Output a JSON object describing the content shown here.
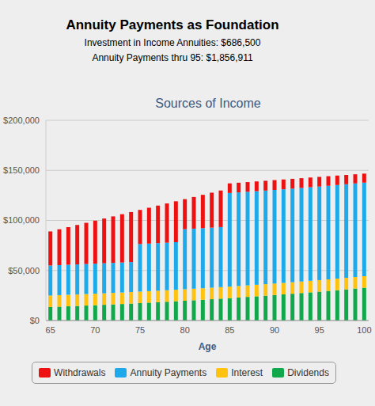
{
  "chart_data": {
    "type": "bar",
    "title": "Sources of Income",
    "annotations": [
      "Annuity Payments as Foundation",
      "Investment in Income Annuities: $686,500",
      "Annuity Payments thru 95: $1,856,911"
    ],
    "x_label": "Age",
    "categories": [
      "65",
      null,
      null,
      null,
      null,
      "70",
      null,
      null,
      null,
      null,
      "75",
      null,
      null,
      null,
      null,
      "80",
      null,
      null,
      null,
      null,
      "85",
      null,
      null,
      null,
      null,
      "90",
      null,
      null,
      null,
      null,
      "95",
      null,
      null,
      null,
      null,
      "100"
    ],
    "series": [
      {
        "name": "Dividends",
        "color": "#10a84a",
        "values": [
          13500,
          13850,
          14200,
          14550,
          14950,
          15300,
          15700,
          16100,
          16500,
          16950,
          17400,
          17850,
          18300,
          18750,
          19250,
          19750,
          20250,
          20750,
          21300,
          21850,
          22400,
          23000,
          23600,
          24200,
          24800,
          25450,
          26100,
          26750,
          27450,
          28150,
          28850,
          29600,
          30350,
          31150,
          31950,
          32750
        ]
      },
      {
        "name": "Interest",
        "color": "#ffc20e",
        "values": [
          11500,
          11500,
          11500,
          11500,
          11500,
          11500,
          11500,
          11500,
          11500,
          11500,
          11500,
          11500,
          11500,
          11500,
          11500,
          11500,
          11500,
          11500,
          11500,
          11500,
          11500,
          11500,
          11500,
          11500,
          11500,
          11500,
          11500,
          11500,
          11500,
          11500,
          11500,
          11500,
          11500,
          11500,
          11500,
          11500
        ]
      },
      {
        "name": "Annuity Payments",
        "color": "#1eaaea",
        "values": [
          30000,
          30000,
          30000,
          30000,
          30000,
          30000,
          30000,
          30000,
          30000,
          30000,
          47500,
          47500,
          47500,
          47500,
          47500,
          60000,
          60000,
          60000,
          60000,
          60000,
          93500,
          93500,
          93500,
          93500,
          93500,
          93500,
          93500,
          93500,
          93500,
          93500,
          93500,
          93500,
          93500,
          93500,
          93500,
          93500
        ]
      },
      {
        "name": "Withdrawals",
        "color": "#ee1111",
        "values": [
          34000,
          35800,
          37600,
          39400,
          41150,
          42950,
          44700,
          46450,
          48200,
          49900,
          34100,
          35800,
          37500,
          39200,
          40850,
          30000,
          31650,
          33300,
          34900,
          36500,
          9600,
          9650,
          9700,
          9750,
          9800,
          9800,
          9800,
          9800,
          9750,
          9700,
          9650,
          9550,
          9450,
          9300,
          9150,
          9000
        ]
      }
    ],
    "stacked": true,
    "ylim": [
      0,
      200000
    ],
    "yticks": [
      {
        "value": 0,
        "label": "$0"
      },
      {
        "value": 50000,
        "label": "$50,000"
      },
      {
        "value": 100000,
        "label": "$100,000"
      },
      {
        "value": 150000,
        "label": "$150,000"
      },
      {
        "value": 200000,
        "label": "$200,000"
      }
    ],
    "grid": true,
    "legend": "bottom"
  }
}
